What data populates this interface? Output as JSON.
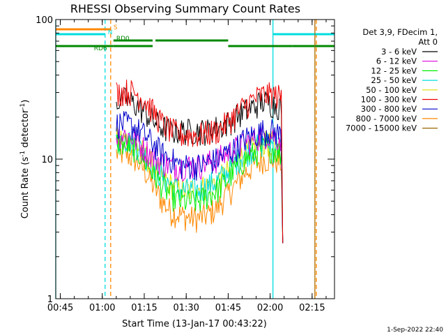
{
  "chart_data": {
    "type": "line",
    "title": "RHESSI Observing Summary Count Rates",
    "xlabel": "Start Time (13-Jan-17 00:43:22)",
    "ylabel": "Count Rate (s",
    "ylabel_sup": "-1",
    "ylabel_rest": " detector",
    "ylabel_sup2": "-1",
    "ylabel_end": ")",
    "footer": "1-Sep-2022 22:40",
    "y_scale": "log",
    "ylim": [
      1,
      100
    ],
    "xlim": [
      "00:43:22",
      "02:23:00"
    ],
    "x_ticks": [
      "00:45",
      "01:00",
      "01:15",
      "01:30",
      "01:45",
      "02:00",
      "02:15"
    ],
    "y_ticks": [
      "1",
      "10",
      "100"
    ],
    "legend_header": [
      "Det 3,9, FDecim 1,",
      "Att 0"
    ],
    "series": [
      {
        "name": "3 - 6 keV",
        "color": "#000000",
        "start": "01:05",
        "end": "02:04",
        "values": [
          26,
          27,
          25,
          22,
          19,
          17,
          16,
          16,
          16,
          16,
          16,
          17,
          18,
          20,
          22,
          24,
          26,
          25,
          24
        ]
      },
      {
        "name": "6 - 12 keV",
        "color": "#dd00dd",
        "start": "01:05",
        "end": "02:04",
        "values": [
          15,
          15,
          14,
          12,
          10.5,
          9.5,
          9,
          9,
          9,
          9,
          9.5,
          10,
          11,
          12,
          13,
          14,
          15,
          15,
          14
        ]
      },
      {
        "name": "12 - 25 keV",
        "color": "#00ee00",
        "start": "01:05",
        "end": "02:04",
        "values": [
          13,
          13,
          12,
          10,
          8,
          6.5,
          5.5,
          5,
          5,
          5,
          5.5,
          6,
          7,
          8.5,
          10,
          11,
          12,
          12,
          11
        ]
      },
      {
        "name": "25 - 50 keV",
        "color": "#00dddd",
        "start": "01:05",
        "end": "02:04",
        "values": [
          14,
          14,
          13,
          11,
          9,
          7.5,
          6.5,
          6,
          6,
          6,
          6.5,
          7,
          8,
          9.5,
          11,
          12,
          13,
          13,
          12
        ]
      },
      {
        "name": "50 - 100 keV",
        "color": "#dddd00",
        "start": "01:05",
        "end": "02:04",
        "values": [
          14,
          14,
          13,
          11,
          9,
          7.5,
          6.5,
          6,
          6,
          6.2,
          6.5,
          7,
          8,
          9.5,
          11,
          12,
          13,
          13,
          12
        ]
      },
      {
        "name": "100 - 300 keV",
        "color": "#ee0000",
        "start": "01:05",
        "end": "02:04",
        "values": [
          30,
          31,
          30,
          27,
          22,
          18,
          16,
          15,
          15,
          15,
          15.5,
          16,
          18,
          21,
          24,
          27,
          29,
          29,
          28
        ]
      },
      {
        "name": "300 - 800 keV",
        "color": "#0000cc",
        "start": "01:05",
        "end": "02:04",
        "values": [
          18,
          18,
          17,
          15,
          13,
          11,
          10,
          9,
          9,
          9,
          9.5,
          10,
          11,
          12,
          14,
          15,
          16,
          16,
          15
        ]
      },
      {
        "name": "800 - 7000 keV",
        "color": "#ff8800",
        "start": "01:05",
        "end": "02:04",
        "values": [
          11,
          11,
          10,
          8.5,
          6.5,
          5,
          4.2,
          4,
          3.8,
          3.8,
          4,
          4.5,
          5.5,
          6.5,
          8,
          9,
          10,
          10,
          9.5
        ]
      },
      {
        "name": "7000 - 15000 keV",
        "color": "#996600",
        "start": "02:16",
        "end": "02:17",
        "values": [
          100,
          1
        ]
      }
    ],
    "vlines": [
      {
        "time": "00:43:22",
        "color": "#00dddd",
        "style": "solid"
      },
      {
        "time": "01:01",
        "color": "#00dddd",
        "style": "dashed"
      },
      {
        "time": "01:03",
        "color": "#ff8800",
        "style": "dashed"
      },
      {
        "time": "02:01",
        "color": "#00dddd",
        "style": "solid"
      },
      {
        "time": "02:16",
        "color": "#ff8800",
        "style": "solid"
      },
      {
        "time": "02:16:30",
        "color": "#ff8800",
        "style": "dashed"
      }
    ],
    "flag_bars": [
      {
        "label": "S",
        "color": "#ff8800",
        "segments": [
          [
            "00:43:22",
            "01:03"
          ]
        ],
        "level": 1,
        "label_time": "01:03"
      },
      {
        "label": "N",
        "color": "#00dddd",
        "segments": [
          [
            "00:43:22",
            "01:01"
          ],
          [
            "02:01",
            "02:23:00"
          ]
        ],
        "level": 2,
        "label_time": "01:01"
      },
      {
        "label": "RD0",
        "color": "#008800",
        "segments": [
          [
            "01:04",
            "01:18"
          ],
          [
            "01:19",
            "01:45"
          ]
        ],
        "level": 3,
        "label_time": "01:04"
      },
      {
        "label": "RD6",
        "color": "#008800",
        "segments": [
          [
            "00:43:22",
            "01:04"
          ],
          [
            "01:04",
            "01:18"
          ],
          [
            "01:45",
            "02:08"
          ],
          [
            "02:08",
            "02:23:00"
          ]
        ],
        "level": 4,
        "label_time": "00:56"
      }
    ]
  }
}
